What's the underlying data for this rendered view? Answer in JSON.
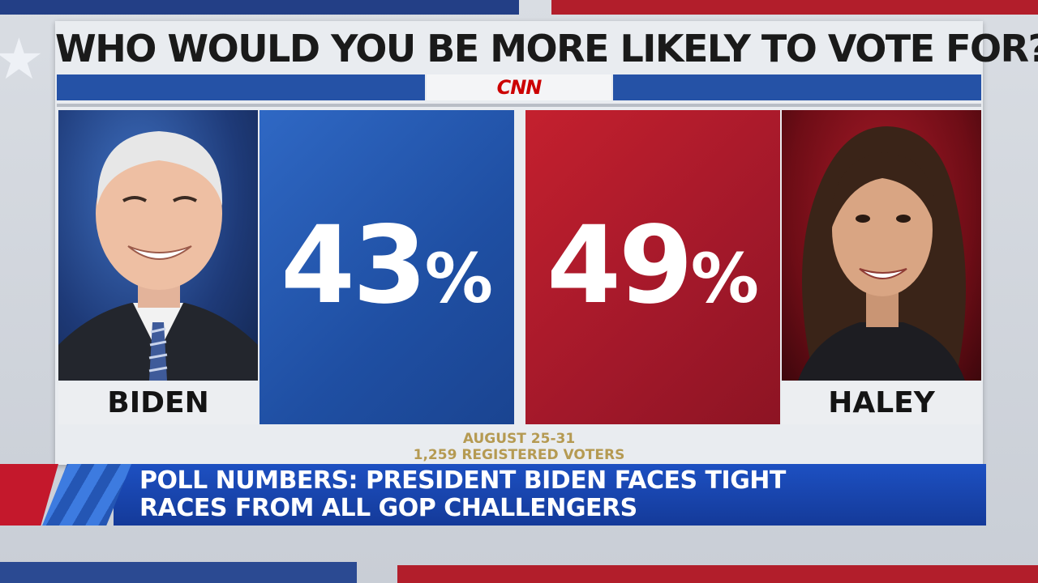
{
  "headline": "WHO WOULD YOU BE MORE LIKELY TO VOTE FOR?",
  "network_logo": "CNN",
  "candidates": [
    {
      "name": "BIDEN",
      "percent_number": "43",
      "percent_sign": "%",
      "color": "#1f4fa3"
    },
    {
      "name": "HALEY",
      "percent_number": "49",
      "percent_sign": "%",
      "color": "#a2182a"
    }
  ],
  "source": {
    "dates": "AUGUST 25-31",
    "sample": "1,259 REGISTERED VOTERS"
  },
  "lower_third": {
    "line1": "POLL NUMBERS: PRESIDENT BIDEN FACES TIGHT",
    "line2": "RACES FROM ALL GOP CHALLENGERS"
  },
  "colors": {
    "blue": "#2552a6",
    "red": "#b21e2b",
    "lower_third_blue": "#1d50c2",
    "source_gold": "#b59a52"
  }
}
